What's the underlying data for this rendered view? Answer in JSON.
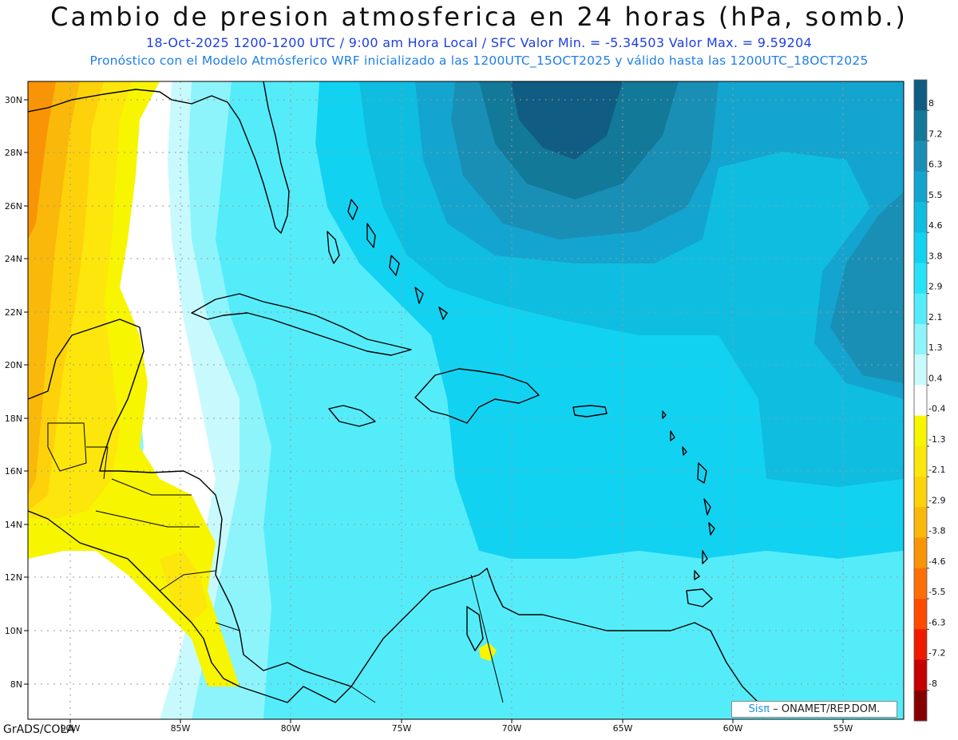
{
  "header": {
    "title": "Cambio de presion atmosferica en 24 horas (hPa, somb.)",
    "line1": "18-Oct-2025    1200-1200 UTC / 9:00 am Hora Local / SFC    Valor Min. = -5.34503  Valor Max. = 9.59204",
    "line2": "Pronóstico con el Modelo Atmósferico WRF inicializado a las 1200UTC_15OCT2025 y válido hasta las  1200UTC_18OCT2025"
  },
  "map": {
    "lat_labels": [
      "30N",
      "28N",
      "26N",
      "24N",
      "22N",
      "20N",
      "18N",
      "16N",
      "14N",
      "12N",
      "10N",
      "8N"
    ],
    "lon_labels": [
      "90W",
      "85W",
      "80W",
      "75W",
      "70W",
      "65W",
      "60W",
      "55W"
    ],
    "colorbar_labels": [
      "8",
      "7.2",
      "6.3",
      "5.5",
      "4.6",
      "3.8",
      "2.9",
      "2.1",
      "1.3",
      "0.4",
      "-0.4",
      "-1.3",
      "-2.1",
      "-2.9",
      "-3.8",
      "-4.6",
      "-5.5",
      "-6.3",
      "-7.2",
      "-8"
    ],
    "colorbar_colors": [
      "#105c82",
      "#127999",
      "#1a8fb6",
      "#13a5cf",
      "#0fbde0",
      "#12d2f2",
      "#28e2f8",
      "#55ecfa",
      "#8ef4fb",
      "#c8fafd",
      "#ffffff",
      "#f7f500",
      "#fde60c",
      "#fed20a",
      "#f9b80a",
      "#f99406",
      "#fd6f06",
      "#ff4b00",
      "#ee1b00",
      "#c60000",
      "#870000"
    ]
  },
  "credit": {
    "logo": "Sisπ",
    "rest": "– ONAMET/REP.DOM."
  },
  "footer": {
    "grads": "GrADS/COLA"
  }
}
